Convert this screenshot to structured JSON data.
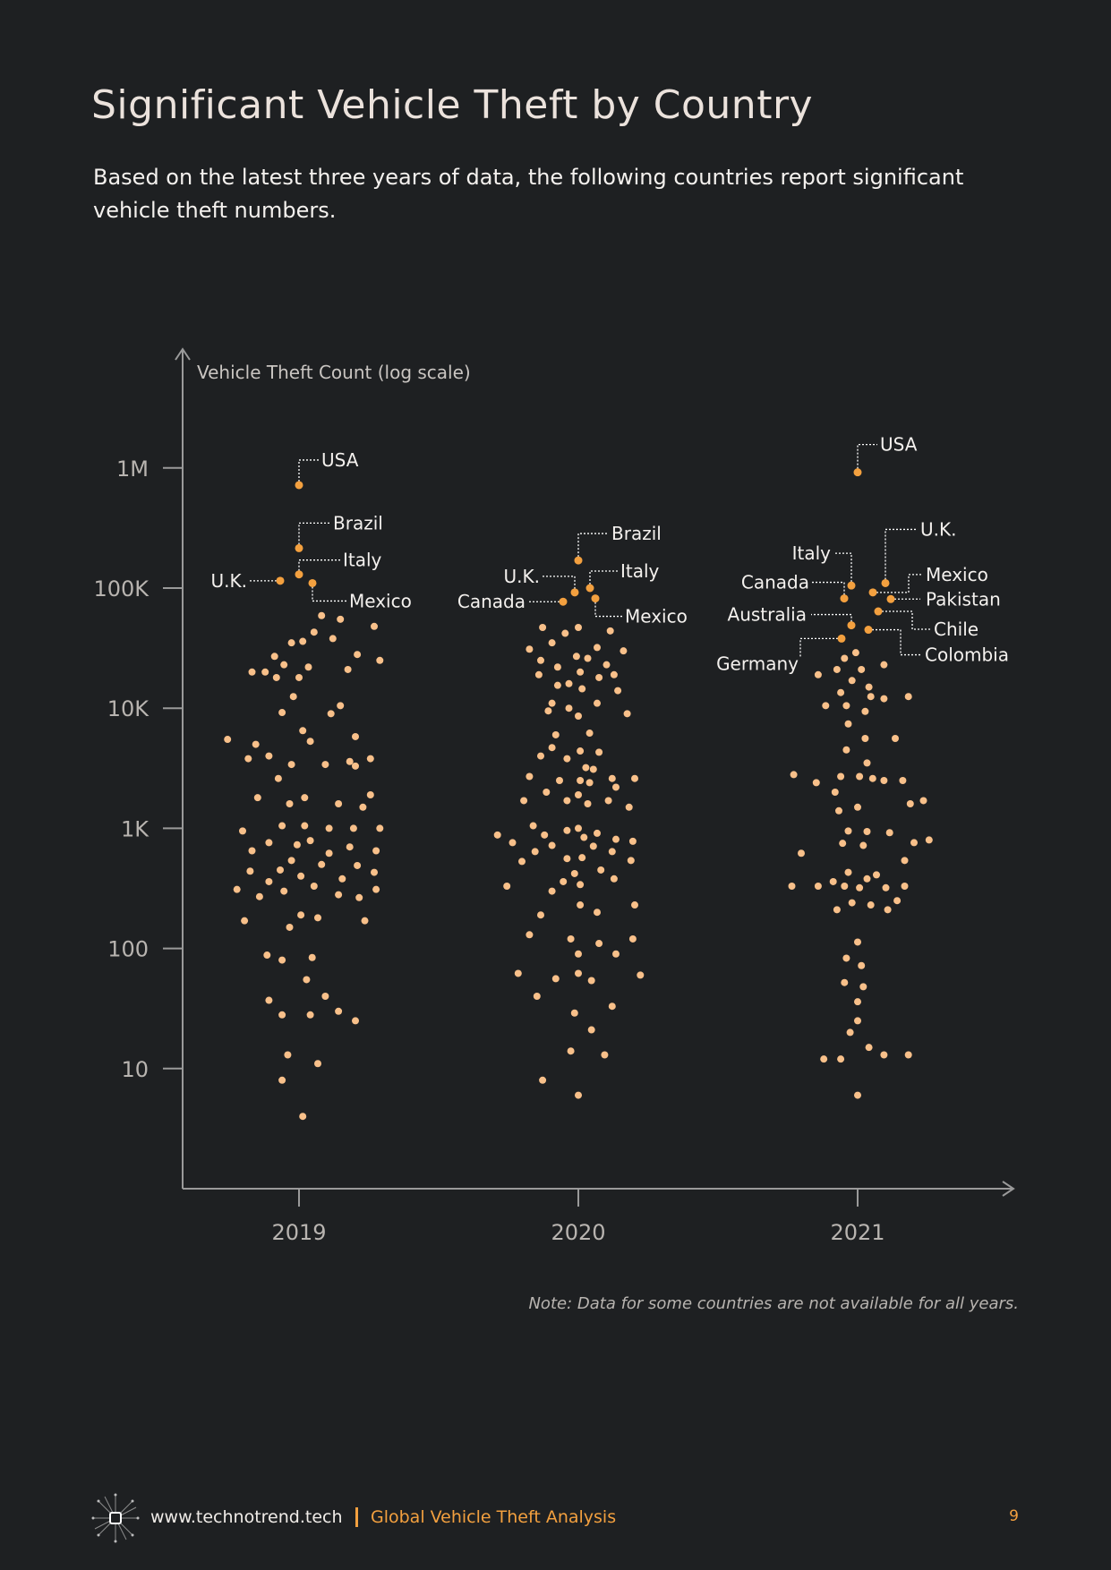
{
  "page": {
    "title": "Significant Vehicle Theft by Country",
    "subtitle": "Based on the latest three years of data, the following countries report significant vehicle theft numbers.",
    "note": "Note: Data for some countries are not available for all years.",
    "footer": {
      "site": "www.technotrend.tech",
      "report": "Global Vehicle Theft Analysis",
      "page_number": "9"
    }
  },
  "colors": {
    "background": "#1e2022",
    "axis": "#9a9a9a",
    "dot": "#f8c08a",
    "highlight": "#f3a03f",
    "label": "#f4f1ee",
    "tick_label": "#b8b4b0"
  },
  "chart_data": {
    "type": "scatter",
    "ylabel": "Vehicle Theft Count (log scale)",
    "yscale": "log",
    "ylim": [
      1,
      10000000
    ],
    "yticks": [
      {
        "value": 10,
        "label": "10"
      },
      {
        "value": 100,
        "label": "100"
      },
      {
        "value": 1000,
        "label": "1K"
      },
      {
        "value": 10000,
        "label": "10K"
      },
      {
        "value": 100000,
        "label": "100K"
      },
      {
        "value": 1000000,
        "label": "1M"
      }
    ],
    "categories": [
      "2019",
      "2020",
      "2021"
    ],
    "highlighted": [
      {
        "year": "2019",
        "country": "USA",
        "value": 720000
      },
      {
        "year": "2019",
        "country": "Brazil",
        "value": 215000
      },
      {
        "year": "2019",
        "country": "Italy",
        "value": 130000
      },
      {
        "year": "2019",
        "country": "U.K.",
        "value": 115000
      },
      {
        "year": "2019",
        "country": "Mexico",
        "value": 110000
      },
      {
        "year": "2020",
        "country": "Brazil",
        "value": 170000
      },
      {
        "year": "2020",
        "country": "Italy",
        "value": 100000
      },
      {
        "year": "2020",
        "country": "U.K.",
        "value": 92000
      },
      {
        "year": "2020",
        "country": "Mexico",
        "value": 82000
      },
      {
        "year": "2020",
        "country": "Canada",
        "value": 77000
      },
      {
        "year": "2021",
        "country": "USA",
        "value": 920000
      },
      {
        "year": "2021",
        "country": "U.K.",
        "value": 110000
      },
      {
        "year": "2021",
        "country": "Italy",
        "value": 105000
      },
      {
        "year": "2021",
        "country": "Mexico",
        "value": 92000
      },
      {
        "year": "2021",
        "country": "Canada",
        "value": 82000
      },
      {
        "year": "2021",
        "country": "Pakistan",
        "value": 81000
      },
      {
        "year": "2021",
        "country": "Chile",
        "value": 64000
      },
      {
        "year": "2021",
        "country": "Australia",
        "value": 49000
      },
      {
        "year": "2021",
        "country": "Colombia",
        "value": 45000
      },
      {
        "year": "2021",
        "country": "Germany",
        "value": 38000
      }
    ],
    "series": [
      {
        "name": "2019",
        "points": [
          [
            0.12,
            59000
          ],
          [
            0.08,
            43000
          ],
          [
            0.22,
            55000
          ],
          [
            0.02,
            36000
          ],
          [
            0.4,
            48000
          ],
          [
            -0.04,
            35000
          ],
          [
            -0.13,
            27000
          ],
          [
            0.18,
            38000
          ],
          [
            0.31,
            28000
          ],
          [
            -0.08,
            23000
          ],
          [
            0.05,
            22000
          ],
          [
            -0.18,
            20000
          ],
          [
            0.43,
            25000
          ],
          [
            0.26,
            21000
          ],
          [
            -0.25,
            20000
          ],
          [
            0.0,
            18000
          ],
          [
            -0.12,
            18000
          ],
          [
            -0.03,
            12500
          ],
          [
            0.22,
            10500
          ],
          [
            0.17,
            9000
          ],
          [
            -0.09,
            9200
          ],
          [
            -0.23,
            5000
          ],
          [
            0.02,
            6500
          ],
          [
            0.06,
            5300
          ],
          [
            0.3,
            5800
          ],
          [
            -0.38,
            5500
          ],
          [
            0.38,
            3800
          ],
          [
            -0.16,
            4000
          ],
          [
            -0.04,
            3400
          ],
          [
            0.14,
            3400
          ],
          [
            0.27,
            3600
          ],
          [
            -0.27,
            3800
          ],
          [
            -0.11,
            2600
          ],
          [
            0.3,
            3300
          ],
          [
            0.03,
            1800
          ],
          [
            -0.05,
            1600
          ],
          [
            0.21,
            1600
          ],
          [
            0.38,
            1900
          ],
          [
            -0.22,
            1800
          ],
          [
            0.34,
            1500
          ],
          [
            -0.09,
            1050
          ],
          [
            0.03,
            1050
          ],
          [
            0.16,
            1000
          ],
          [
            0.29,
            1000
          ],
          [
            -0.3,
            950
          ],
          [
            0.43,
            1000
          ],
          [
            0.06,
            790
          ],
          [
            -0.16,
            760
          ],
          [
            -0.01,
            730
          ],
          [
            0.27,
            700
          ],
          [
            0.16,
            620
          ],
          [
            0.41,
            650
          ],
          [
            -0.25,
            650
          ],
          [
            -0.04,
            540
          ],
          [
            0.12,
            500
          ],
          [
            0.31,
            490
          ],
          [
            -0.1,
            450
          ],
          [
            -0.26,
            440
          ],
          [
            0.4,
            430
          ],
          [
            0.01,
            400
          ],
          [
            0.23,
            380
          ],
          [
            -0.16,
            360
          ],
          [
            0.08,
            330
          ],
          [
            0.41,
            310
          ],
          [
            0.21,
            280
          ],
          [
            -0.33,
            310
          ],
          [
            -0.08,
            300
          ],
          [
            0.32,
            265
          ],
          [
            -0.21,
            270
          ],
          [
            0.01,
            190
          ],
          [
            0.1,
            180
          ],
          [
            0.35,
            170
          ],
          [
            -0.29,
            170
          ],
          [
            -0.05,
            150
          ],
          [
            -0.17,
            88
          ],
          [
            -0.09,
            80
          ],
          [
            0.07,
            84
          ],
          [
            0.04,
            55
          ],
          [
            0.14,
            40
          ],
          [
            -0.16,
            37
          ],
          [
            0.21,
            30
          ],
          [
            0.06,
            28
          ],
          [
            -0.09,
            28
          ],
          [
            0.3,
            25
          ],
          [
            -0.06,
            13
          ],
          [
            0.1,
            11
          ],
          [
            -0.09,
            8
          ],
          [
            0.02,
            4
          ]
        ]
      },
      {
        "name": "2020",
        "points": [
          [
            -0.19,
            47000
          ],
          [
            -0.07,
            42000
          ],
          [
            0.0,
            47000
          ],
          [
            0.17,
            44000
          ],
          [
            -0.14,
            35000
          ],
          [
            0.1,
            32000
          ],
          [
            0.24,
            30000
          ],
          [
            -0.26,
            31000
          ],
          [
            -0.01,
            27000
          ],
          [
            -0.2,
            25000
          ],
          [
            0.05,
            26000
          ],
          [
            0.15,
            23000
          ],
          [
            -0.11,
            22000
          ],
          [
            0.01,
            20000
          ],
          [
            -0.21,
            19000
          ],
          [
            0.19,
            19000
          ],
          [
            0.11,
            18000
          ],
          [
            -0.05,
            16000
          ],
          [
            -0.11,
            15500
          ],
          [
            0.02,
            14500
          ],
          [
            0.21,
            14000
          ],
          [
            -0.14,
            11000
          ],
          [
            -0.05,
            10000
          ],
          [
            0.1,
            11000
          ],
          [
            -0.16,
            9500
          ],
          [
            0.0,
            8600
          ],
          [
            0.26,
            9000
          ],
          [
            -0.12,
            6000
          ],
          [
            0.06,
            6200
          ],
          [
            -0.14,
            4700
          ],
          [
            0.01,
            4400
          ],
          [
            0.11,
            4300
          ],
          [
            -0.2,
            4000
          ],
          [
            -0.06,
            3800
          ],
          [
            0.04,
            3200
          ],
          [
            0.08,
            3100
          ],
          [
            -0.26,
            2700
          ],
          [
            0.18,
            2600
          ],
          [
            0.01,
            2500
          ],
          [
            -0.1,
            2500
          ],
          [
            0.3,
            2600
          ],
          [
            0.06,
            2400
          ],
          [
            0.2,
            2200
          ],
          [
            -0.17,
            2000
          ],
          [
            0.0,
            1900
          ],
          [
            -0.06,
            1700
          ],
          [
            0.16,
            1700
          ],
          [
            -0.29,
            1700
          ],
          [
            0.05,
            1600
          ],
          [
            0.27,
            1500
          ],
          [
            -0.24,
            1050
          ],
          [
            -0.06,
            960
          ],
          [
            0.0,
            1000
          ],
          [
            0.1,
            910
          ],
          [
            -0.18,
            880
          ],
          [
            0.03,
            840
          ],
          [
            0.2,
            810
          ],
          [
            -0.43,
            880
          ],
          [
            -0.35,
            760
          ],
          [
            0.29,
            780
          ],
          [
            -0.14,
            720
          ],
          [
            0.08,
            710
          ],
          [
            0.18,
            640
          ],
          [
            -0.23,
            640
          ],
          [
            -0.06,
            560
          ],
          [
            0.02,
            570
          ],
          [
            -0.3,
            530
          ],
          [
            0.28,
            540
          ],
          [
            0.12,
            450
          ],
          [
            -0.02,
            420
          ],
          [
            0.19,
            380
          ],
          [
            -0.08,
            360
          ],
          [
            -0.14,
            300
          ],
          [
            -0.38,
            330
          ],
          [
            0.01,
            340
          ],
          [
            -0.2,
            190
          ],
          [
            0.01,
            230
          ],
          [
            0.1,
            200
          ],
          [
            0.3,
            230
          ],
          [
            -0.26,
            130
          ],
          [
            -0.04,
            120
          ],
          [
            0.11,
            110
          ],
          [
            0.29,
            120
          ],
          [
            0.0,
            90
          ],
          [
            0.2,
            90
          ],
          [
            0.0,
            62
          ],
          [
            -0.12,
            56
          ],
          [
            0.07,
            54
          ],
          [
            -0.32,
            62
          ],
          [
            0.33,
            60
          ],
          [
            -0.22,
            40
          ],
          [
            0.18,
            33
          ],
          [
            -0.02,
            29
          ],
          [
            0.07,
            21
          ],
          [
            -0.04,
            14
          ],
          [
            0.14,
            13
          ],
          [
            -0.19,
            8
          ],
          [
            0.0,
            6
          ]
        ]
      },
      {
        "name": "2021",
        "points": [
          [
            -0.01,
            29000
          ],
          [
            -0.07,
            26000
          ],
          [
            0.14,
            23000
          ],
          [
            -0.11,
            21000
          ],
          [
            0.02,
            21000
          ],
          [
            -0.03,
            17000
          ],
          [
            -0.21,
            19000
          ],
          [
            0.06,
            15000
          ],
          [
            -0.09,
            13500
          ],
          [
            0.07,
            12500
          ],
          [
            0.14,
            12000
          ],
          [
            0.27,
            12500
          ],
          [
            -0.06,
            10500
          ],
          [
            -0.17,
            10500
          ],
          [
            0.04,
            9400
          ],
          [
            -0.05,
            7400
          ],
          [
            0.04,
            5600
          ],
          [
            0.2,
            5600
          ],
          [
            -0.06,
            4500
          ],
          [
            0.05,
            3500
          ],
          [
            -0.34,
            2800
          ],
          [
            -0.22,
            2400
          ],
          [
            -0.09,
            2700
          ],
          [
            0.01,
            2700
          ],
          [
            0.08,
            2600
          ],
          [
            0.24,
            2500
          ],
          [
            0.14,
            2500
          ],
          [
            0.35,
            1700
          ],
          [
            -0.12,
            2000
          ],
          [
            0.0,
            1500
          ],
          [
            -0.1,
            1400
          ],
          [
            0.28,
            1600
          ],
          [
            -0.05,
            950
          ],
          [
            0.05,
            940
          ],
          [
            0.17,
            920
          ],
          [
            -0.08,
            750
          ],
          [
            0.03,
            720
          ],
          [
            0.3,
            760
          ],
          [
            0.38,
            800
          ],
          [
            -0.3,
            620
          ],
          [
            0.25,
            540
          ],
          [
            -0.05,
            430
          ],
          [
            0.05,
            380
          ],
          [
            0.1,
            410
          ],
          [
            -0.13,
            360
          ],
          [
            -0.07,
            330
          ],
          [
            0.01,
            320
          ],
          [
            0.15,
            320
          ],
          [
            0.25,
            330
          ],
          [
            -0.35,
            330
          ],
          [
            -0.21,
            330
          ],
          [
            0.21,
            250
          ],
          [
            -0.03,
            240
          ],
          [
            0.07,
            230
          ],
          [
            -0.11,
            210
          ],
          [
            0.16,
            210
          ],
          [
            0.0,
            113
          ],
          [
            -0.06,
            83
          ],
          [
            0.02,
            72
          ],
          [
            -0.07,
            52
          ],
          [
            0.03,
            48
          ],
          [
            0.0,
            36
          ],
          [
            0.0,
            25
          ],
          [
            -0.04,
            20
          ],
          [
            0.06,
            15
          ],
          [
            -0.09,
            12
          ],
          [
            -0.18,
            12
          ],
          [
            0.14,
            13
          ],
          [
            0.27,
            13
          ],
          [
            0.0,
            6
          ]
        ]
      }
    ]
  }
}
